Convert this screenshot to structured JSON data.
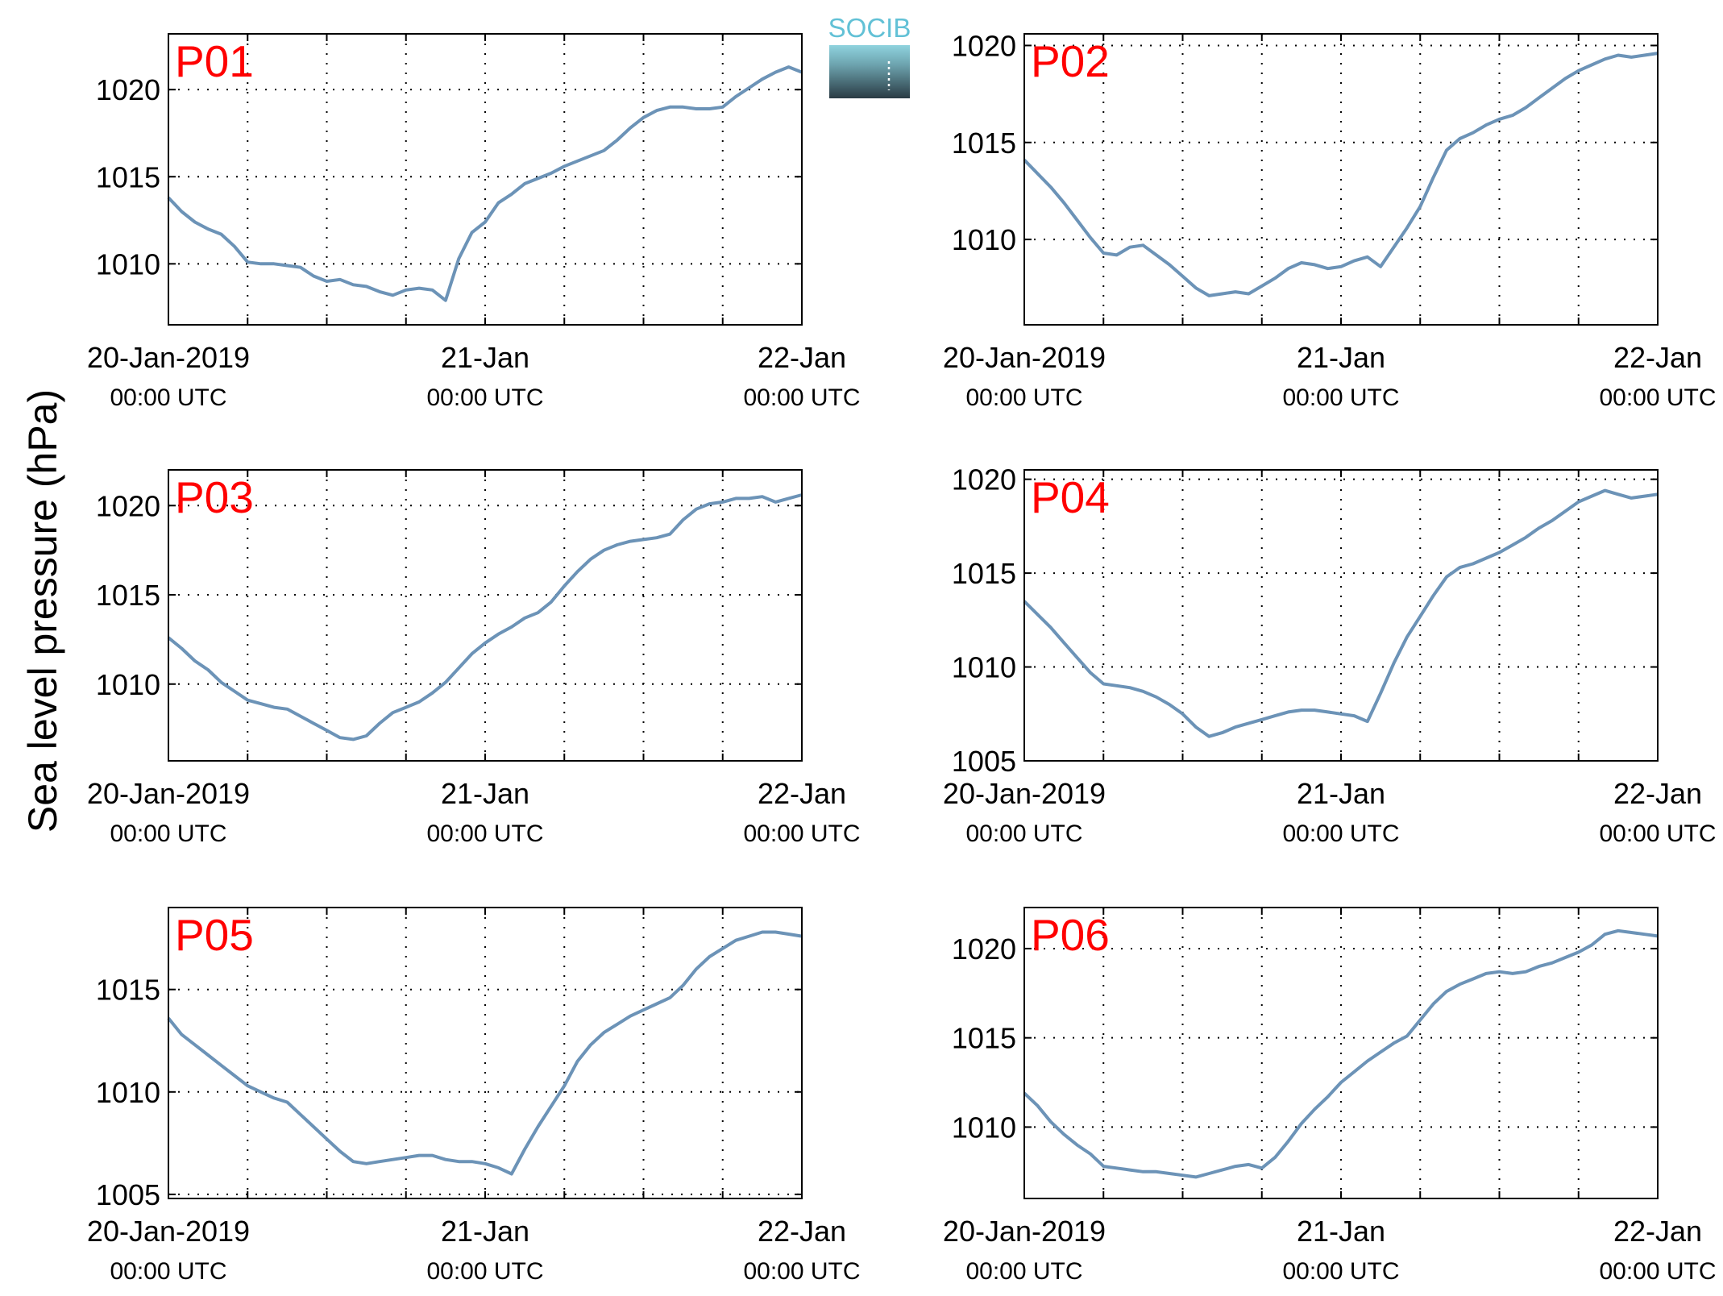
{
  "figure": {
    "ylabel": "Sea level pressure (hPa)",
    "logo_text": "SOCIB",
    "colors": {
      "line": "#6c93b7",
      "panel_label": "#ff0000",
      "grid": "#000000"
    }
  },
  "chart_data": [
    {
      "type": "line",
      "title": "P01",
      "xlim": [
        0,
        48
      ],
      "ylim": [
        1006.5,
        1023.2
      ],
      "yticks": [
        1010,
        1015,
        1020
      ],
      "xticks": [
        0,
        6,
        12,
        18,
        24,
        30,
        36,
        42,
        48
      ],
      "xticklabels": [
        {
          "at": 0,
          "date": "20-Jan-2019",
          "time": "00:00 UTC"
        },
        {
          "at": 24,
          "date": "21-Jan",
          "time": "00:00 UTC"
        },
        {
          "at": 48,
          "date": "22-Jan",
          "time": "00:00 UTC"
        }
      ],
      "grid": true,
      "series": [
        {
          "x": [
            0,
            1,
            2,
            3,
            4,
            5,
            6,
            7,
            8,
            9,
            10,
            11,
            12,
            13,
            14,
            15,
            16,
            17,
            18,
            19,
            20,
            21,
            22,
            23,
            24,
            25,
            26,
            27,
            28,
            29,
            30,
            31,
            32,
            33,
            34,
            35,
            36,
            37,
            38,
            39,
            40,
            41,
            42,
            43,
            44,
            45,
            46,
            47,
            48
          ],
          "y": [
            1013.8,
            1013.0,
            1012.4,
            1012.0,
            1011.7,
            1011.0,
            1010.1,
            1010.0,
            1010.0,
            1009.9,
            1009.8,
            1009.3,
            1009.0,
            1009.1,
            1008.8,
            1008.7,
            1008.4,
            1008.2,
            1008.5,
            1008.6,
            1008.5,
            1007.9,
            1010.3,
            1011.8,
            1012.4,
            1013.5,
            1014.0,
            1014.6,
            1014.9,
            1015.2,
            1015.6,
            1015.9,
            1016.2,
            1016.5,
            1017.1,
            1017.8,
            1018.4,
            1018.8,
            1019.0,
            1019.0,
            1018.9,
            1018.9,
            1019.0,
            1019.6,
            1020.1,
            1020.6,
            1021.0,
            1021.3,
            1021.0
          ]
        }
      ]
    },
    {
      "type": "line",
      "title": "P02",
      "xlim": [
        0,
        48
      ],
      "ylim": [
        1005.6,
        1020.6
      ],
      "yticks": [
        1010,
        1015,
        1020
      ],
      "xticks": [
        0,
        6,
        12,
        18,
        24,
        30,
        36,
        42,
        48
      ],
      "xticklabels": [
        {
          "at": 0,
          "date": "20-Jan-2019",
          "time": "00:00 UTC"
        },
        {
          "at": 24,
          "date": "21-Jan",
          "time": "00:00 UTC"
        },
        {
          "at": 48,
          "date": "22-Jan",
          "time": "00:00 UTC"
        }
      ],
      "grid": true,
      "series": [
        {
          "x": [
            0,
            1,
            2,
            3,
            4,
            5,
            6,
            7,
            8,
            9,
            10,
            11,
            12,
            13,
            14,
            15,
            16,
            17,
            18,
            19,
            20,
            21,
            22,
            23,
            24,
            25,
            26,
            27,
            28,
            29,
            30,
            31,
            32,
            33,
            34,
            35,
            36,
            37,
            38,
            39,
            40,
            41,
            42,
            43,
            44,
            45,
            46,
            47,
            48
          ],
          "y": [
            1014.1,
            1013.4,
            1012.7,
            1011.9,
            1011.0,
            1010.1,
            1009.3,
            1009.2,
            1009.6,
            1009.7,
            1009.2,
            1008.7,
            1008.1,
            1007.5,
            1007.1,
            1007.2,
            1007.3,
            1007.2,
            1007.6,
            1008.0,
            1008.5,
            1008.8,
            1008.7,
            1008.5,
            1008.6,
            1008.9,
            1009.1,
            1008.6,
            1009.6,
            1010.6,
            1011.7,
            1013.2,
            1014.6,
            1015.2,
            1015.5,
            1015.9,
            1016.2,
            1016.4,
            1016.8,
            1017.3,
            1017.8,
            1018.3,
            1018.7,
            1019.0,
            1019.3,
            1019.5,
            1019.4,
            1019.5,
            1019.6
          ]
        }
      ]
    },
    {
      "type": "line",
      "title": "P03",
      "xlim": [
        0,
        48
      ],
      "ylim": [
        1005.7,
        1022.0
      ],
      "yticks": [
        1010,
        1015,
        1020
      ],
      "xticks": [
        0,
        6,
        12,
        18,
        24,
        30,
        36,
        42,
        48
      ],
      "xticklabels": [
        {
          "at": 0,
          "date": "20-Jan-2019",
          "time": "00:00 UTC"
        },
        {
          "at": 24,
          "date": "21-Jan",
          "time": "00:00 UTC"
        },
        {
          "at": 48,
          "date": "22-Jan",
          "time": "00:00 UTC"
        }
      ],
      "grid": true,
      "series": [
        {
          "x": [
            0,
            1,
            2,
            3,
            4,
            5,
            6,
            7,
            8,
            9,
            10,
            11,
            12,
            13,
            14,
            15,
            16,
            17,
            18,
            19,
            20,
            21,
            22,
            23,
            24,
            25,
            26,
            27,
            28,
            29,
            30,
            31,
            32,
            33,
            34,
            35,
            36,
            37,
            38,
            39,
            40,
            41,
            42,
            43,
            44,
            45,
            46,
            47,
            48
          ],
          "y": [
            1012.6,
            1012.0,
            1011.3,
            1010.8,
            1010.1,
            1009.6,
            1009.1,
            1008.9,
            1008.7,
            1008.6,
            1008.2,
            1007.8,
            1007.4,
            1007.0,
            1006.9,
            1007.1,
            1007.8,
            1008.4,
            1008.7,
            1009.0,
            1009.5,
            1010.1,
            1010.9,
            1011.7,
            1012.3,
            1012.8,
            1013.2,
            1013.7,
            1014.0,
            1014.6,
            1015.5,
            1016.3,
            1017.0,
            1017.5,
            1017.8,
            1018.0,
            1018.1,
            1018.2,
            1018.4,
            1019.2,
            1019.8,
            1020.1,
            1020.2,
            1020.4,
            1020.4,
            1020.5,
            1020.2,
            1020.4,
            1020.6
          ]
        }
      ]
    },
    {
      "type": "line",
      "title": "P04",
      "xlim": [
        0,
        48
      ],
      "ylim": [
        1005,
        1020.5
      ],
      "yticks": [
        1005,
        1010,
        1015,
        1020
      ],
      "xticks": [
        0,
        6,
        12,
        18,
        24,
        30,
        36,
        42,
        48
      ],
      "xticklabels": [
        {
          "at": 0,
          "date": "20-Jan-2019",
          "time": "00:00 UTC"
        },
        {
          "at": 24,
          "date": "21-Jan",
          "time": "00:00 UTC"
        },
        {
          "at": 48,
          "date": "22-Jan",
          "time": "00:00 UTC"
        }
      ],
      "grid": true,
      "series": [
        {
          "x": [
            0,
            1,
            2,
            3,
            4,
            5,
            6,
            7,
            8,
            9,
            10,
            11,
            12,
            13,
            14,
            15,
            16,
            17,
            18,
            19,
            20,
            21,
            22,
            23,
            24,
            25,
            26,
            27,
            28,
            29,
            30,
            31,
            32,
            33,
            34,
            35,
            36,
            37,
            38,
            39,
            40,
            41,
            42,
            43,
            44,
            45,
            46,
            47,
            48
          ],
          "y": [
            1013.5,
            1012.8,
            1012.1,
            1011.3,
            1010.5,
            1009.7,
            1009.1,
            1009.0,
            1008.9,
            1008.7,
            1008.4,
            1008.0,
            1007.5,
            1006.8,
            1006.3,
            1006.5,
            1006.8,
            1007.0,
            1007.2,
            1007.4,
            1007.6,
            1007.7,
            1007.7,
            1007.6,
            1007.5,
            1007.4,
            1007.1,
            1008.6,
            1010.2,
            1011.6,
            1012.7,
            1013.8,
            1014.8,
            1015.3,
            1015.5,
            1015.8,
            1016.1,
            1016.5,
            1016.9,
            1017.4,
            1017.8,
            1018.3,
            1018.8,
            1019.1,
            1019.4,
            1019.2,
            1019.0,
            1019.1,
            1019.2
          ]
        }
      ]
    },
    {
      "type": "line",
      "title": "P05",
      "xlim": [
        0,
        48
      ],
      "ylim": [
        1004.8,
        1019.0
      ],
      "yticks": [
        1005,
        1010,
        1015
      ],
      "xticks": [
        0,
        6,
        12,
        18,
        24,
        30,
        36,
        42,
        48
      ],
      "xticklabels": [
        {
          "at": 0,
          "date": "20-Jan-2019",
          "time": "00:00 UTC"
        },
        {
          "at": 24,
          "date": "21-Jan",
          "time": "00:00 UTC"
        },
        {
          "at": 48,
          "date": "22-Jan",
          "time": "00:00 UTC"
        }
      ],
      "grid": true,
      "series": [
        {
          "x": [
            0,
            1,
            2,
            3,
            4,
            5,
            6,
            7,
            8,
            9,
            10,
            11,
            12,
            13,
            14,
            15,
            16,
            17,
            18,
            19,
            20,
            21,
            22,
            23,
            24,
            25,
            26,
            27,
            28,
            29,
            30,
            31,
            32,
            33,
            34,
            35,
            36,
            37,
            38,
            39,
            40,
            41,
            42,
            43,
            44,
            45,
            46,
            47,
            48
          ],
          "y": [
            1013.6,
            1012.8,
            1012.3,
            1011.8,
            1011.3,
            1010.8,
            1010.3,
            1010.0,
            1009.7,
            1009.5,
            1008.9,
            1008.3,
            1007.7,
            1007.1,
            1006.6,
            1006.5,
            1006.6,
            1006.7,
            1006.8,
            1006.9,
            1006.9,
            1006.7,
            1006.6,
            1006.6,
            1006.5,
            1006.3,
            1006.0,
            1007.2,
            1008.3,
            1009.3,
            1010.3,
            1011.5,
            1012.3,
            1012.9,
            1013.3,
            1013.7,
            1014.0,
            1014.3,
            1014.6,
            1015.2,
            1016.0,
            1016.6,
            1017.0,
            1017.4,
            1017.6,
            1017.8,
            1017.8,
            1017.7,
            1017.6
          ]
        }
      ]
    },
    {
      "type": "line",
      "title": "P06",
      "xlim": [
        0,
        48
      ],
      "ylim": [
        1006.0,
        1022.3
      ],
      "yticks": [
        1010,
        1015,
        1020
      ],
      "xticks": [
        0,
        6,
        12,
        18,
        24,
        30,
        36,
        42,
        48
      ],
      "xticklabels": [
        {
          "at": 0,
          "date": "20-Jan-2019",
          "time": "00:00 UTC"
        },
        {
          "at": 24,
          "date": "21-Jan",
          "time": "00:00 UTC"
        },
        {
          "at": 48,
          "date": "22-Jan",
          "time": "00:00 UTC"
        }
      ],
      "grid": true,
      "series": [
        {
          "x": [
            0,
            1,
            2,
            3,
            4,
            5,
            6,
            7,
            8,
            9,
            10,
            11,
            12,
            13,
            14,
            15,
            16,
            17,
            18,
            19,
            20,
            21,
            22,
            23,
            24,
            25,
            26,
            27,
            28,
            29,
            30,
            31,
            32,
            33,
            34,
            35,
            36,
            37,
            38,
            39,
            40,
            41,
            42,
            43,
            44,
            45,
            46,
            47,
            48
          ],
          "y": [
            1011.9,
            1011.2,
            1010.3,
            1009.6,
            1009.0,
            1008.5,
            1007.8,
            1007.7,
            1007.6,
            1007.5,
            1007.5,
            1007.4,
            1007.3,
            1007.2,
            1007.4,
            1007.6,
            1007.8,
            1007.9,
            1007.7,
            1008.3,
            1009.2,
            1010.2,
            1011.0,
            1011.7,
            1012.5,
            1013.1,
            1013.7,
            1014.2,
            1014.7,
            1015.1,
            1016.0,
            1016.9,
            1017.6,
            1018.0,
            1018.3,
            1018.6,
            1018.7,
            1018.6,
            1018.7,
            1019.0,
            1019.2,
            1019.5,
            1019.8,
            1020.2,
            1020.8,
            1021.0,
            1020.9,
            1020.8,
            1020.7
          ]
        }
      ]
    }
  ]
}
